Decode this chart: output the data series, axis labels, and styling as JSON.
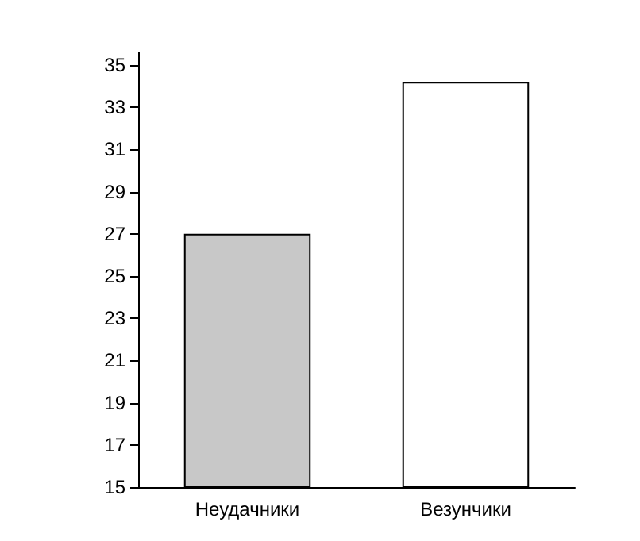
{
  "chart_data": {
    "type": "bar",
    "categories": [
      "Неудачники",
      "Везунчики"
    ],
    "values": [
      27,
      34.2
    ],
    "colors": [
      "#c8c8c8",
      "#ffffff"
    ],
    "ylim": [
      15,
      35.6
    ],
    "yticks": [
      15,
      17,
      19,
      21,
      23,
      25,
      27,
      29,
      31,
      33,
      35
    ],
    "grid": false
  }
}
